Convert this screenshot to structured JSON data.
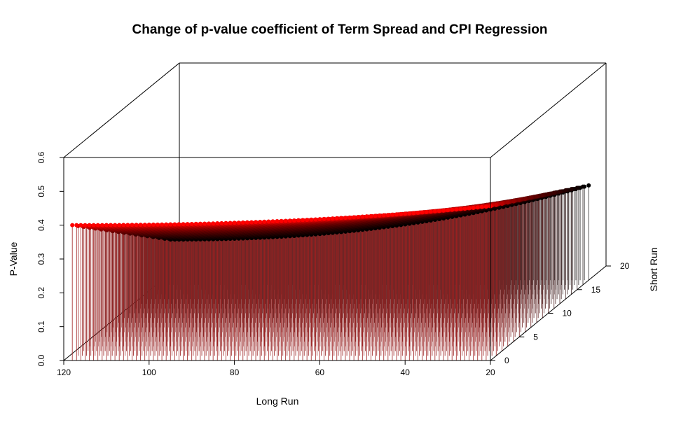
{
  "chart_data": {
    "type": "scatter3d",
    "title": "Change of p-value coefficient of Term Spread and CPI Regression",
    "xlabel": "Long Run",
    "ylabel": "Short Run",
    "zlabel": "P-Value",
    "xlim": [
      120,
      20
    ],
    "ylim": [
      0,
      20
    ],
    "zlim": [
      0,
      0.6
    ],
    "x_ticks": [
      "120",
      "100",
      "80",
      "60",
      "40",
      "20"
    ],
    "y_ticks": [
      "0",
      "5",
      "10",
      "15",
      "20"
    ],
    "z_ticks": [
      "0.0",
      "0.1",
      "0.2",
      "0.3",
      "0.4",
      "0.5",
      "0.6"
    ],
    "long_run_range": [
      20,
      118
    ],
    "short_run_range": [
      0,
      17
    ],
    "surface_model": "p = 0.10 + 0.30*(1 - s/17) + 0.16*((118 - L)/98)^2.2*(0.35 + 0.65*s/17) + 0.02*(s/17)",
    "colors": {
      "near": "#ff0000",
      "far": "#000000",
      "drop_near": "#a02020",
      "drop_far": "#303030"
    },
    "grid": false,
    "legend": "none"
  }
}
